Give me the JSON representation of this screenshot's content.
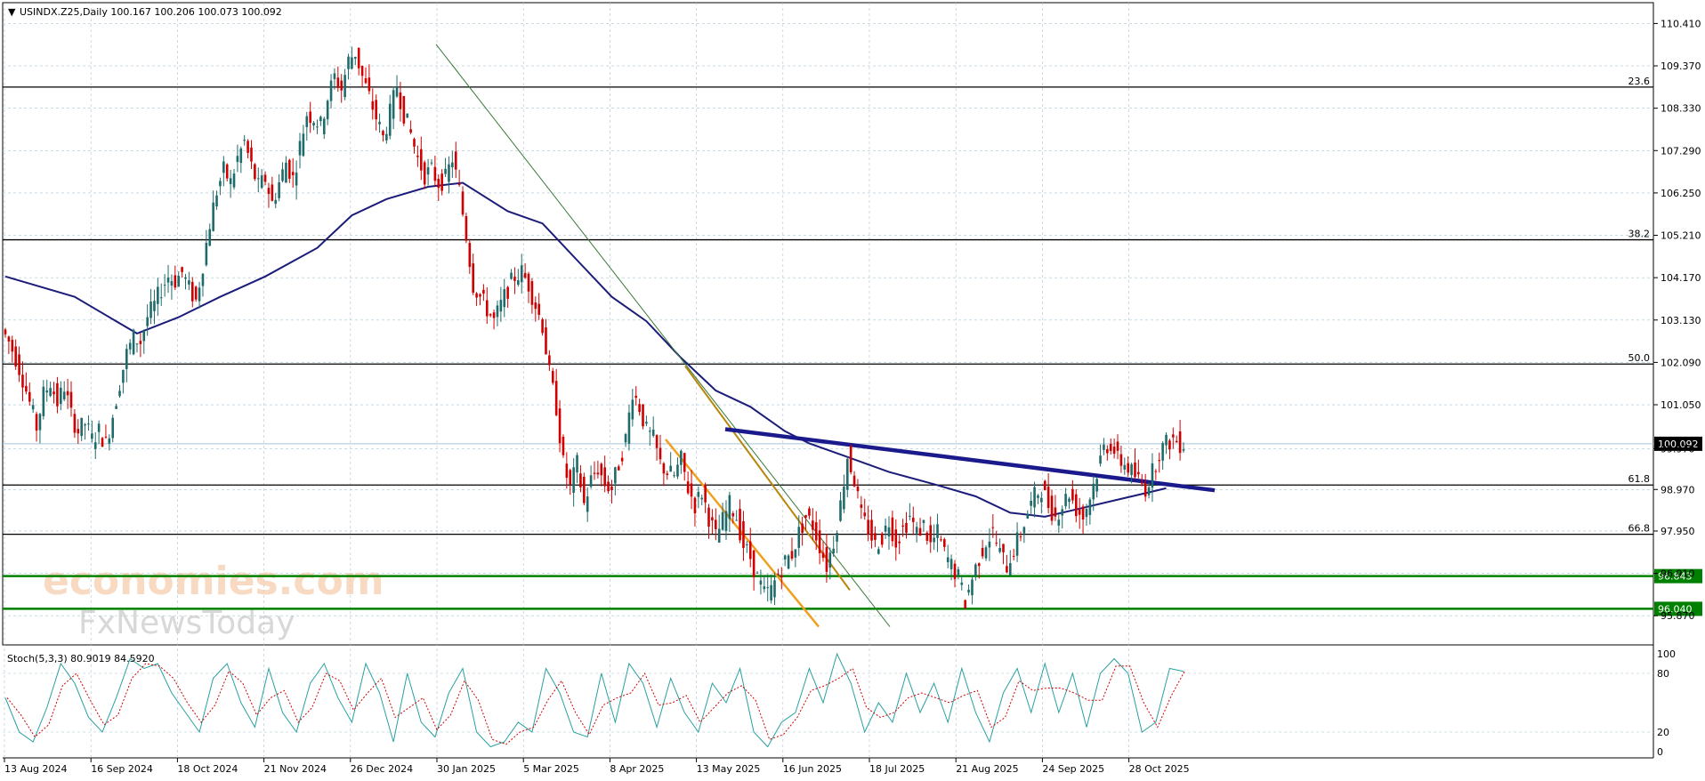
{
  "header": {
    "symbol_line": "USINDX.Z25,Daily  100.167 100.206 100.073 100.092"
  },
  "chart_data": {
    "type": "candlestick",
    "title": "USINDX.Z25,Daily",
    "ohlc_last": {
      "open": 100.167,
      "high": 100.206,
      "low": 100.073,
      "close": 100.092
    },
    "ylim": [
      95.7,
      110.55
    ],
    "y_ticks": [
      "110.410",
      "109.370",
      "108.330",
      "107.290",
      "106.250",
      "105.210",
      "104.170",
      "103.130",
      "102.090",
      "101.050",
      "99.970",
      "98.970",
      "97.950",
      "96.910",
      "95.870"
    ],
    "last_price_label": "100.092",
    "x_tick_labels": [
      "13 Aug 2024",
      "16 Sep 2024",
      "18 Oct 2024",
      "21 Nov 2024",
      "26 Dec 2024",
      "30 Jan 2025",
      "5 Mar 2025",
      "8 Apr 2025",
      "13 May 2025",
      "16 Jun 2025",
      "18 Jul 2025",
      "21 Aug 2025",
      "24 Sep 2025",
      "28 Oct 2025"
    ],
    "price_path": [
      [
        0,
        102.9
      ],
      [
        2,
        102.6
      ],
      [
        4,
        102.2
      ],
      [
        6,
        101.7
      ],
      [
        8,
        101.1
      ],
      [
        10,
        100.5
      ],
      [
        12,
        101.3
      ],
      [
        14,
        101.6
      ],
      [
        16,
        101.1
      ],
      [
        18,
        101.5
      ],
      [
        20,
        100.8
      ],
      [
        22,
        100.4
      ],
      [
        24,
        100.6
      ],
      [
        26,
        100.2
      ],
      [
        28,
        100.4
      ],
      [
        30,
        100.1
      ],
      [
        32,
        100.8
      ],
      [
        34,
        101.6
      ],
      [
        36,
        102.3
      ],
      [
        38,
        102.7
      ],
      [
        40,
        102.6
      ],
      [
        42,
        103.2
      ],
      [
        44,
        103.5
      ],
      [
        46,
        103.9
      ],
      [
        48,
        104.2
      ],
      [
        50,
        104.1
      ],
      [
        52,
        104.3
      ],
      [
        54,
        103.9
      ],
      [
        56,
        103.6
      ],
      [
        58,
        104.5
      ],
      [
        60,
        105.5
      ],
      [
        62,
        106.3
      ],
      [
        64,
        106.8
      ],
      [
        66,
        106.5
      ],
      [
        68,
        107.1
      ],
      [
        70,
        107.5
      ],
      [
        72,
        106.9
      ],
      [
        74,
        106.4
      ],
      [
        76,
        106.6
      ],
      [
        78,
        106.0
      ],
      [
        80,
        106.5
      ],
      [
        82,
        107.0
      ],
      [
        84,
        106.6
      ],
      [
        86,
        107.4
      ],
      [
        88,
        108.2
      ],
      [
        90,
        108.1
      ],
      [
        92,
        107.9
      ],
      [
        94,
        108.6
      ],
      [
        96,
        109.1
      ],
      [
        98,
        108.8
      ],
      [
        100,
        109.5
      ],
      [
        102,
        109.7
      ],
      [
        104,
        109.1
      ],
      [
        106,
        108.6
      ],
      [
        108,
        108.1
      ],
      [
        110,
        107.6
      ],
      [
        112,
        108.2
      ],
      [
        114,
        108.9
      ],
      [
        116,
        108.2
      ],
      [
        118,
        107.7
      ],
      [
        120,
        107.1
      ],
      [
        122,
        106.7
      ],
      [
        124,
        106.8
      ],
      [
        126,
        106.5
      ],
      [
        128,
        106.6
      ],
      [
        130,
        107.1
      ],
      [
        132,
        106.3
      ],
      [
        134,
        105.2
      ],
      [
        136,
        104.0
      ],
      [
        138,
        103.7
      ],
      [
        140,
        103.4
      ],
      [
        142,
        103.1
      ],
      [
        144,
        103.5
      ],
      [
        146,
        103.9
      ],
      [
        148,
        104.2
      ],
      [
        150,
        104.3
      ],
      [
        152,
        104.0
      ],
      [
        154,
        103.5
      ],
      [
        156,
        103.0
      ],
      [
        158,
        101.8
      ],
      [
        160,
        101.0
      ],
      [
        162,
        99.6
      ],
      [
        164,
        99.0
      ],
      [
        166,
        99.6
      ],
      [
        168,
        98.6
      ],
      [
        170,
        99.2
      ],
      [
        172,
        99.5
      ],
      [
        174,
        99.1
      ],
      [
        176,
        99.0
      ],
      [
        178,
        99.6
      ],
      [
        180,
        100.2
      ],
      [
        182,
        101.4
      ],
      [
        184,
        101.0
      ],
      [
        186,
        100.4
      ],
      [
        188,
        100.2
      ],
      [
        190,
        99.6
      ],
      [
        192,
        99.4
      ],
      [
        194,
        99.3
      ],
      [
        196,
        99.7
      ],
      [
        198,
        99.0
      ],
      [
        200,
        98.6
      ],
      [
        202,
        98.9
      ],
      [
        204,
        98.3
      ],
      [
        206,
        97.8
      ],
      [
        208,
        98.2
      ],
      [
        210,
        98.6
      ],
      [
        212,
        98.3
      ],
      [
        214,
        97.6
      ],
      [
        216,
        97.3
      ],
      [
        218,
        96.8
      ],
      [
        220,
        96.4
      ],
      [
        222,
        96.5
      ],
      [
        224,
        96.9
      ],
      [
        226,
        97.2
      ],
      [
        228,
        97.4
      ],
      [
        230,
        97.9
      ],
      [
        232,
        98.3
      ],
      [
        234,
        98.1
      ],
      [
        236,
        97.6
      ],
      [
        238,
        97.1
      ],
      [
        240,
        97.7
      ],
      [
        242,
        98.6
      ],
      [
        244,
        99.8
      ],
      [
        246,
        99.2
      ],
      [
        248,
        98.3
      ],
      [
        250,
        98.0
      ],
      [
        252,
        97.6
      ],
      [
        254,
        97.8
      ],
      [
        256,
        98.2
      ],
      [
        258,
        97.7
      ],
      [
        260,
        98.0
      ],
      [
        262,
        98.3
      ],
      [
        264,
        97.9
      ],
      [
        266,
        98.1
      ],
      [
        268,
        97.6
      ],
      [
        270,
        97.9
      ],
      [
        272,
        97.4
      ],
      [
        274,
        97.1
      ],
      [
        276,
        96.8
      ],
      [
        278,
        96.2
      ],
      [
        280,
        96.8
      ],
      [
        282,
        97.3
      ],
      [
        284,
        97.7
      ],
      [
        286,
        97.9
      ],
      [
        288,
        97.4
      ],
      [
        290,
        97.1
      ],
      [
        292,
        97.5
      ],
      [
        294,
        97.9
      ],
      [
        296,
        98.4
      ],
      [
        298,
        98.8
      ],
      [
        300,
        99.0
      ],
      [
        302,
        98.6
      ],
      [
        304,
        98.3
      ],
      [
        306,
        98.6
      ],
      [
        308,
        98.9
      ],
      [
        310,
        98.5
      ],
      [
        312,
        98.3
      ],
      [
        314,
        98.8
      ],
      [
        316,
        99.4
      ],
      [
        318,
        100.0
      ],
      [
        320,
        100.1
      ],
      [
        322,
        99.7
      ],
      [
        324,
        99.6
      ],
      [
        326,
        99.4
      ],
      [
        328,
        99.2
      ],
      [
        330,
        99.0
      ],
      [
        332,
        99.4
      ],
      [
        334,
        99.9
      ],
      [
        336,
        100.1
      ],
      [
        338,
        100.2
      ],
      [
        340,
        100.1
      ]
    ],
    "moving_average": [
      [
        0,
        104.2
      ],
      [
        20,
        103.7
      ],
      [
        38,
        102.8
      ],
      [
        50,
        103.2
      ],
      [
        62,
        103.7
      ],
      [
        75,
        104.2
      ],
      [
        90,
        104.9
      ],
      [
        100,
        105.7
      ],
      [
        110,
        106.1
      ],
      [
        122,
        106.4
      ],
      [
        132,
        106.5
      ],
      [
        145,
        105.8
      ],
      [
        155,
        105.5
      ],
      [
        165,
        104.6
      ],
      [
        175,
        103.7
      ],
      [
        185,
        103.1
      ],
      [
        195,
        102.2
      ],
      [
        205,
        101.4
      ],
      [
        215,
        101.0
      ],
      [
        225,
        100.4
      ],
      [
        232,
        100.1
      ],
      [
        242,
        99.8
      ],
      [
        255,
        99.4
      ],
      [
        268,
        99.1
      ],
      [
        280,
        98.8
      ],
      [
        290,
        98.4
      ],
      [
        300,
        98.3
      ],
      [
        310,
        98.5
      ],
      [
        320,
        98.7
      ],
      [
        330,
        98.9
      ],
      [
        335,
        99.0
      ]
    ],
    "fib_levels": [
      {
        "label": "23.6",
        "value": 108.85
      },
      {
        "label": "38.2",
        "value": 105.1
      },
      {
        "label": "50.0",
        "value": 102.05
      },
      {
        "label": "61.8",
        "value": 99.08
      },
      {
        "label": "66.8",
        "value": 97.87
      }
    ],
    "support_levels": [
      {
        "label": "96.843",
        "value": 96.843
      },
      {
        "label": "96.040",
        "value": 96.04
      }
    ],
    "stochastic": {
      "label": "Stoch(5,3,3) 80.9019 84.5920",
      "ylim": [
        0,
        100
      ],
      "ticks": [
        "100",
        "80",
        "20",
        "0"
      ],
      "k": [
        [
          0,
          55
        ],
        [
          4,
          20
        ],
        [
          8,
          10
        ],
        [
          12,
          45
        ],
        [
          16,
          90
        ],
        [
          20,
          70
        ],
        [
          24,
          35
        ],
        [
          28,
          20
        ],
        [
          32,
          55
        ],
        [
          36,
          95
        ],
        [
          40,
          85
        ],
        [
          44,
          90
        ],
        [
          48,
          60
        ],
        [
          52,
          40
        ],
        [
          56,
          20
        ],
        [
          60,
          75
        ],
        [
          64,
          90
        ],
        [
          68,
          50
        ],
        [
          72,
          25
        ],
        [
          76,
          85
        ],
        [
          80,
          40
        ],
        [
          84,
          20
        ],
        [
          88,
          70
        ],
        [
          92,
          90
        ],
        [
          96,
          55
        ],
        [
          100,
          30
        ],
        [
          104,
          90
        ],
        [
          108,
          60
        ],
        [
          112,
          10
        ],
        [
          116,
          80
        ],
        [
          120,
          30
        ],
        [
          124,
          15
        ],
        [
          128,
          60
        ],
        [
          132,
          85
        ],
        [
          136,
          20
        ],
        [
          140,
          5
        ],
        [
          144,
          10
        ],
        [
          148,
          30
        ],
        [
          152,
          20
        ],
        [
          156,
          85
        ],
        [
          160,
          60
        ],
        [
          164,
          20
        ],
        [
          168,
          15
        ],
        [
          172,
          80
        ],
        [
          176,
          30
        ],
        [
          180,
          90
        ],
        [
          184,
          70
        ],
        [
          188,
          25
        ],
        [
          192,
          75
        ],
        [
          196,
          40
        ],
        [
          200,
          20
        ],
        [
          204,
          70
        ],
        [
          208,
          50
        ],
        [
          212,
          85
        ],
        [
          216,
          20
        ],
        [
          220,
          5
        ],
        [
          224,
          30
        ],
        [
          228,
          40
        ],
        [
          232,
          85
        ],
        [
          236,
          50
        ],
        [
          240,
          100
        ],
        [
          244,
          70
        ],
        [
          248,
          20
        ],
        [
          252,
          50
        ],
        [
          256,
          30
        ],
        [
          260,
          80
        ],
        [
          264,
          40
        ],
        [
          268,
          70
        ],
        [
          272,
          30
        ],
        [
          276,
          85
        ],
        [
          280,
          40
        ],
        [
          284,
          10
        ],
        [
          288,
          60
        ],
        [
          292,
          85
        ],
        [
          296,
          40
        ],
        [
          300,
          90
        ],
        [
          304,
          40
        ],
        [
          308,
          80
        ],
        [
          312,
          25
        ],
        [
          316,
          80
        ],
        [
          320,
          95
        ],
        [
          324,
          80
        ],
        [
          328,
          20
        ],
        [
          332,
          30
        ],
        [
          336,
          85
        ],
        [
          340,
          82
        ]
      ]
    }
  },
  "watermark": {
    "line1": "economies.com",
    "line2": "FxNewsToday"
  }
}
